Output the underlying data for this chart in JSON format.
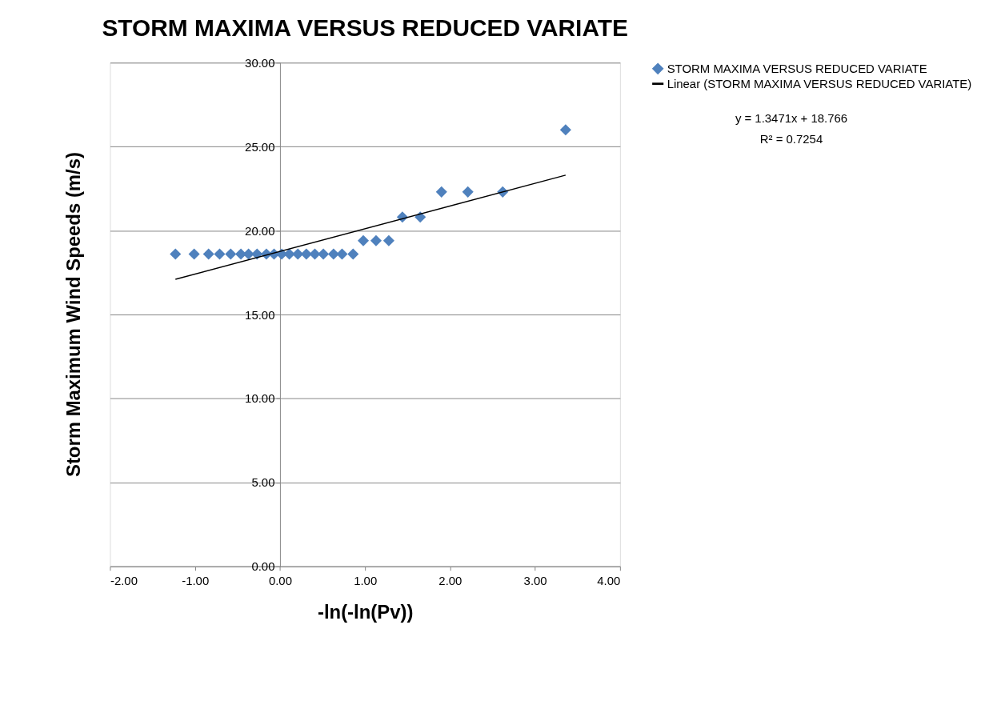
{
  "chart_data": {
    "type": "scatter",
    "title": "STORM MAXIMA VERSUS REDUCED VARIATE",
    "xlabel": "-ln(-ln(Pv))",
    "ylabel": "Storm Maximum Wind Speeds (m/s)",
    "x": [
      -1.23,
      -1.01,
      -0.84,
      -0.71,
      -0.58,
      -0.46,
      -0.37,
      -0.27,
      -0.16,
      -0.07,
      0.02,
      0.11,
      0.21,
      0.31,
      0.41,
      0.51,
      0.63,
      0.73,
      0.86,
      0.98,
      1.13,
      1.28,
      1.44,
      1.65,
      1.9,
      2.21,
      2.62,
      3.36
    ],
    "series": [
      {
        "name": "STORM MAXIMA VERSUS REDUCED VARIATE",
        "marker": "diamond",
        "color": "#4f81bd",
        "values": [
          18.6,
          18.6,
          18.6,
          18.6,
          18.6,
          18.6,
          18.6,
          18.6,
          18.6,
          18.6,
          18.6,
          18.6,
          18.6,
          18.6,
          18.6,
          18.6,
          18.6,
          18.6,
          18.6,
          19.4,
          19.4,
          19.4,
          20.8,
          20.8,
          22.3,
          22.3,
          22.3,
          26.0
        ]
      },
      {
        "name": "Linear (STORM MAXIMA VERSUS REDUCED VARIATE)",
        "type": "line",
        "line_style": "solid",
        "color": "#000000",
        "x": [
          -1.23,
          3.36
        ],
        "values": [
          17.1,
          23.3
        ]
      }
    ],
    "xlim": [
      -2,
      4
    ],
    "ylim": [
      0,
      30
    ],
    "xticks": [
      {
        "value": -2,
        "label": "-2.00"
      },
      {
        "value": -1,
        "label": "-1.00"
      },
      {
        "value": 0,
        "label": "0.00"
      },
      {
        "value": 1,
        "label": "1.00"
      },
      {
        "value": 2,
        "label": "2.00"
      },
      {
        "value": 3,
        "label": "3.00"
      },
      {
        "value": 4,
        "label": "4.00"
      }
    ],
    "yticks": [
      {
        "value": 0,
        "label": "0.00"
      },
      {
        "value": 5,
        "label": "5.00"
      },
      {
        "value": 10,
        "label": "10.00"
      },
      {
        "value": 15,
        "label": "15.00"
      },
      {
        "value": 20,
        "label": "20.00"
      },
      {
        "value": 25,
        "label": "25.00"
      },
      {
        "value": 30,
        "label": "30.00"
      }
    ],
    "grid": "y",
    "legend": "right",
    "annotations": [
      "y = 1.3471x + 18.766",
      "R² = 0.7254"
    ]
  }
}
